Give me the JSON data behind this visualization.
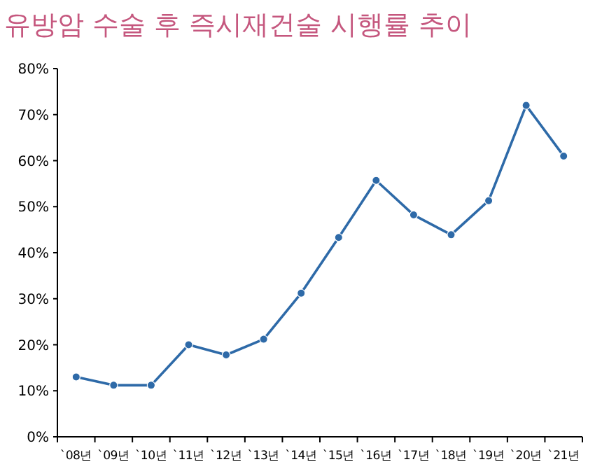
{
  "chart_data": {
    "type": "line",
    "title": "유방암 수술 후 즉시재건술 시행률 추이",
    "categories": [
      "`08년",
      "`09년",
      "`10년",
      "`11년",
      "`12년",
      "`13년",
      "`14년",
      "`15년",
      "`16년",
      "`17년",
      "`18년",
      "`19년",
      "`20년",
      "`21년"
    ],
    "series": [
      {
        "color": "#2e6aa8",
        "values": [
          13,
          11.2,
          11.2,
          20,
          17.8,
          21.2,
          31.2,
          43.3,
          55.7,
          48.2,
          43.9,
          51.3,
          72,
          61
        ]
      }
    ],
    "ylim": [
      0,
      80
    ],
    "yticks": [
      {
        "value": 0,
        "label": "0%"
      },
      {
        "value": 10,
        "label": "10%"
      },
      {
        "value": 20,
        "label": "20%"
      },
      {
        "value": 30,
        "label": "30%"
      },
      {
        "value": 40,
        "label": "40%"
      },
      {
        "value": 50,
        "label": "50%"
      },
      {
        "value": 60,
        "label": "60%"
      },
      {
        "value": 70,
        "label": "70%"
      },
      {
        "value": 80,
        "label": "80%"
      }
    ],
    "marker": "circle",
    "line_style": "solid",
    "grid": false
  }
}
